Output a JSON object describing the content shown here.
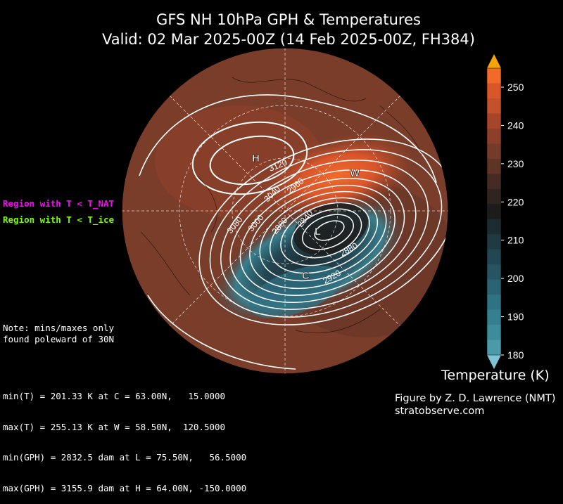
{
  "title": {
    "line1": "GFS NH 10hPa GPH & Temperatures",
    "line2": "Valid: 02 Mar 2025-00Z  (14 Feb 2025-00Z, FH384)"
  },
  "legend": {
    "nat_label": "Region with T < T_NAT",
    "nat_color": "#ff00ff",
    "ice_label": "Region with T < T_ice",
    "ice_color": "#7cfc00"
  },
  "note": "Note: mins/maxes only\nfound poleward of 30N",
  "stats": [
    "min(T) = 201.33 K at C = 63.00N,   15.0000",
    "max(T) = 255.13 K at W = 58.50N,  120.5000",
    "min(GPH) = 2832.5 dam at L = 75.50N,   56.5000",
    "max(GPH) = 3155.9 dam at H = 64.00N, -150.0000"
  ],
  "credit": {
    "line1": "Figure by Z. D. Lawrence (NMT)",
    "line2": "stratobserve.com"
  },
  "colorbar": {
    "label": "Temperature (K)",
    "ticks": [
      "250",
      "240",
      "230",
      "220",
      "210",
      "200",
      "190",
      "180"
    ],
    "colors": [
      "#f26a2a",
      "#d9552a",
      "#c4502c",
      "#a5462a",
      "#8c4029",
      "#753b2a",
      "#5e3427",
      "#452b24",
      "#2f2420",
      "#1c1c1c",
      "#1d2c33",
      "#1f3a43",
      "#224652",
      "#265463",
      "#2a6374",
      "#2f7284",
      "#357f90",
      "#3d8c9c",
      "#4a9aa8"
    ],
    "extend_top": "#f5a40c",
    "extend_bottom": "#7ec3d4"
  },
  "map": {
    "markers": [
      "H",
      "L",
      "W",
      "C"
    ],
    "contour_labels": [
      "3120",
      "3080",
      "3040",
      "2960",
      "3000",
      "2880",
      "2840",
      "2880",
      "2920"
    ]
  }
}
